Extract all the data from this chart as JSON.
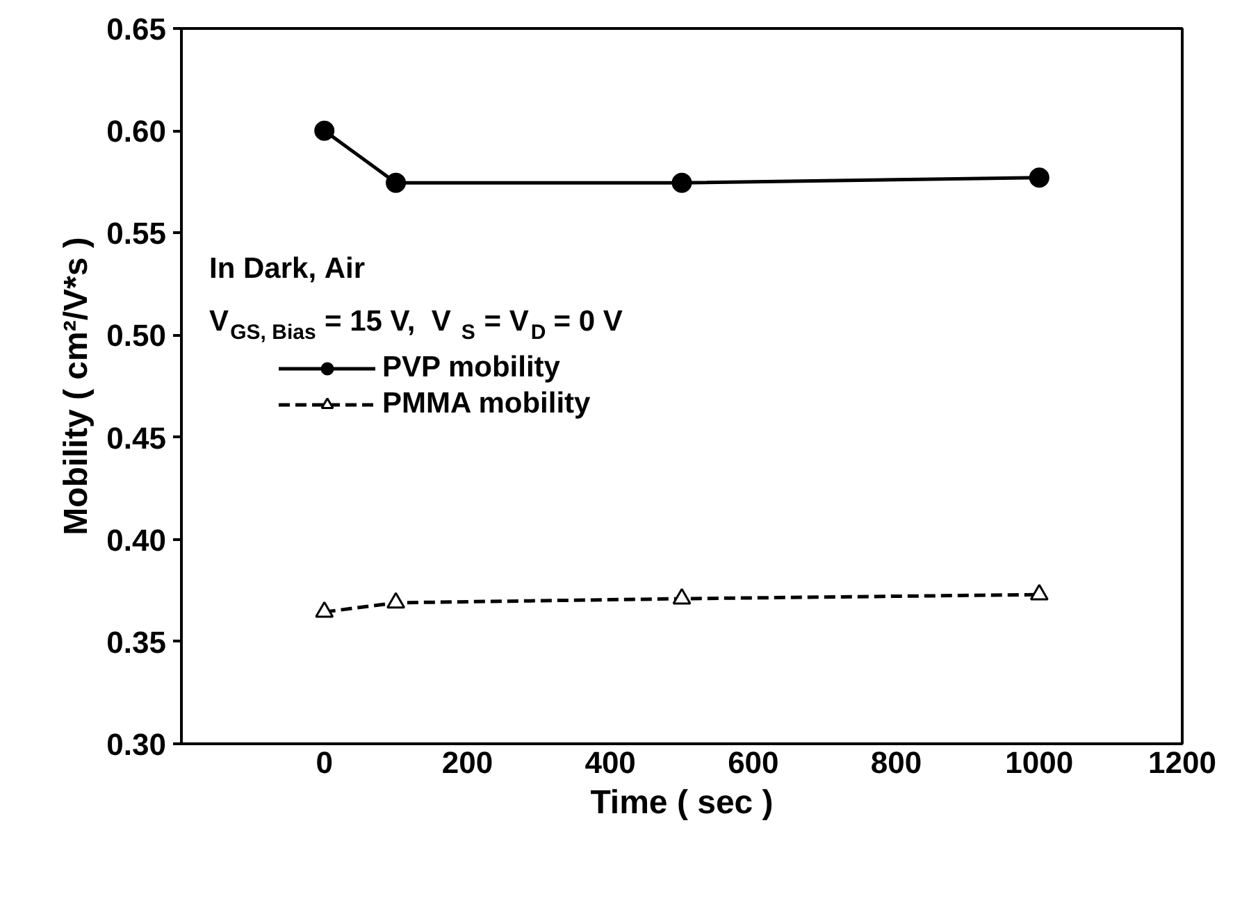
{
  "chart_data": {
    "type": "line",
    "xlabel": "Time ( sec )",
    "ylabel": "Mobility ( cm²/V*s )",
    "x": [
      0,
      100,
      500,
      1000
    ],
    "series": [
      {
        "name": "PVP mobility",
        "color": "#000000",
        "values": [
          0.6,
          0.5745,
          0.5745,
          0.577
        ],
        "marker": "circle",
        "line_style": "solid"
      },
      {
        "name": "PMMA mobility",
        "color": "#000000",
        "values": [
          0.3645,
          0.369,
          0.371,
          0.373
        ],
        "marker": "triangle",
        "line_style": "dashed"
      }
    ],
    "xlim": [
      -200,
      1200
    ],
    "xticks": [
      0,
      200,
      400,
      600,
      800,
      1000,
      1200
    ],
    "ylim": [
      0.3,
      0.65
    ],
    "yticks": [
      {
        "value": 0.3,
        "label": "0.30"
      },
      {
        "value": 0.35,
        "label": "0.35"
      },
      {
        "value": 0.4,
        "label": "0.40"
      },
      {
        "value": 0.45,
        "label": "0.45"
      },
      {
        "value": 0.5,
        "label": "0.50"
      },
      {
        "value": 0.55,
        "label": "0.55"
      },
      {
        "value": 0.6,
        "label": "0.60"
      },
      {
        "value": 0.65,
        "label": "0.65"
      }
    ],
    "annotations": [
      "In Dark, Air",
      "V$_{GS, Bias}$ = 15 V,  V$_{S}$ = V$_{D}$ = 0 V"
    ],
    "grid": false,
    "legend": "left"
  }
}
